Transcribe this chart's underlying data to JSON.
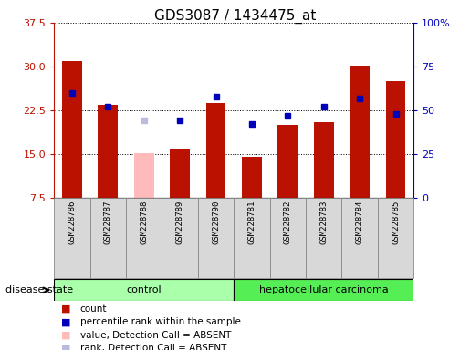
{
  "title": "GDS3087 / 1434475_at",
  "samples": [
    "GSM228786",
    "GSM228787",
    "GSM228788",
    "GSM228789",
    "GSM228790",
    "GSM228781",
    "GSM228782",
    "GSM228783",
    "GSM228784",
    "GSM228785"
  ],
  "count_values": [
    31.0,
    23.5,
    null,
    15.8,
    23.8,
    14.6,
    20.0,
    20.5,
    30.2,
    27.5
  ],
  "absent_value": [
    null,
    null,
    15.2,
    null,
    null,
    null,
    null,
    null,
    null,
    null
  ],
  "rank_values": [
    60,
    52,
    null,
    44,
    58,
    42,
    47,
    52,
    57,
    48
  ],
  "absent_rank": [
    null,
    null,
    44,
    null,
    null,
    null,
    null,
    null,
    null,
    null
  ],
  "left_yticks": [
    7.5,
    15.0,
    22.5,
    30.0,
    37.5
  ],
  "right_yticks": [
    0,
    25,
    50,
    75,
    100
  ],
  "ylim_left": [
    7.5,
    37.5
  ],
  "ylim_right": [
    0,
    100
  ],
  "bar_color": "#bb1100",
  "absent_bar_color": "#ffbbbb",
  "rank_color": "#0000bb",
  "absent_rank_color": "#bbbbdd",
  "control_bg": "#aaffaa",
  "cancer_bg": "#55ee55",
  "group_label_control": "control",
  "group_label_cancer": "hepatocellular carcinoma",
  "legend_items": [
    {
      "label": "count",
      "color": "#bb1100"
    },
    {
      "label": "percentile rank within the sample",
      "color": "#0000bb"
    },
    {
      "label": "value, Detection Call = ABSENT",
      "color": "#ffbbbb"
    },
    {
      "label": "rank, Detection Call = ABSENT",
      "color": "#bbbbdd"
    }
  ],
  "disease_state_label": "disease state",
  "n_control": 5,
  "n_cancer": 5
}
